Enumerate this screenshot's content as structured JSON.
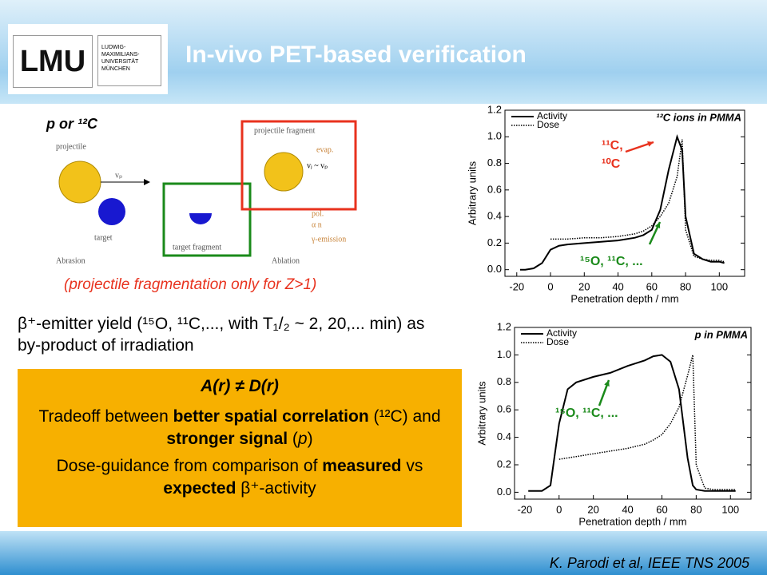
{
  "header": {
    "title": "In-vivo PET-based verification",
    "logo": "LMU",
    "logo_sub": "LUDWIG-\nMAXIMILIANS-\nUNIVERSITÄT\nMÜNCHEN"
  },
  "diagram": {
    "label": "p or ¹²C",
    "projectile": "projectile",
    "target": "target",
    "abrasion": "Abrasion",
    "target_fragment": "target fragment",
    "projectile_fragment": "projectile fragment",
    "evap": "evap.",
    "ablation": "Ablation",
    "gamma": "γ-emission",
    "pol": "pol.",
    "alpha": "α   n",
    "vp1": "vₚ",
    "vp2": "vⱼ ~ vₚ"
  },
  "note": "(projectile fragmentation only for Z>1)",
  "yield_text": "β⁺-emitter yield (¹⁵O, ¹¹C,..., with T₁/₂ ~ 2, 20,... min) as by-product of irradiation",
  "box": {
    "heading": "A(r) ≠ D(r)",
    "p1": [
      "Tradeoff between ",
      "better spatial correlation",
      " (¹²C) and ",
      "stronger signal",
      " (",
      "p",
      ")"
    ],
    "p2": [
      "Dose-guidance from comparison of ",
      "measured",
      " vs ",
      "expected",
      " β⁺-activity"
    ]
  },
  "citation": "K. Parodi et al, IEEE TNS 2005",
  "chart_data": [
    {
      "type": "line",
      "title": "¹²C ions in PMMA",
      "x_label": "Penetration depth / mm",
      "y_label": "Arbitrary units",
      "x": [
        -18,
        -15,
        -10,
        -5,
        0,
        5,
        10,
        20,
        30,
        40,
        50,
        55,
        60,
        65,
        70,
        75,
        78,
        80,
        85,
        90,
        95,
        100,
        103
      ],
      "series": [
        {
          "name": "Activity",
          "color": "#000000",
          "style": "solid",
          "values": [
            0,
            0,
            0.01,
            0.05,
            0.15,
            0.18,
            0.19,
            0.2,
            0.21,
            0.22,
            0.24,
            0.26,
            0.3,
            0.45,
            0.75,
            1.0,
            0.9,
            0.4,
            0.12,
            0.08,
            0.06,
            0.06,
            0.05
          ]
        },
        {
          "name": "Dose",
          "color": "#000000",
          "style": "dotted",
          "values": [
            null,
            null,
            null,
            null,
            0.23,
            0.23,
            0.23,
            0.24,
            0.24,
            0.25,
            0.27,
            0.29,
            0.33,
            0.4,
            0.5,
            0.7,
            0.98,
            0.3,
            0.1,
            0.08,
            0.07,
            0.07,
            0.06
          ]
        }
      ],
      "xlim": [
        -27,
        115
      ],
      "ylim": [
        -0.05,
        1.2
      ],
      "xticks": [
        -20,
        0,
        20,
        40,
        60,
        80,
        100
      ],
      "yticks": [
        {
          "value": 0,
          "label": "0.0"
        },
        0.2,
        0.4,
        0.6,
        0.8,
        {
          "value": 1,
          "label": "1.0"
        },
        1.2
      ],
      "annotations": [
        {
          "text": "¹¹C,",
          "color": "#e8321e"
        },
        {
          "text": "¹⁰C",
          "color": "#e8321e"
        },
        {
          "text": "¹⁵O, ¹¹C, ...",
          "color": "#1a8a1a"
        }
      ]
    },
    {
      "type": "line",
      "title": "p in PMMA",
      "x_label": "Penetration depth / mm",
      "y_label": "Arbitrary units",
      "x": [
        -18,
        -15,
        -10,
        -5,
        0,
        5,
        10,
        20,
        30,
        40,
        50,
        55,
        60,
        65,
        70,
        75,
        78,
        80,
        85,
        90,
        95,
        100,
        103
      ],
      "series": [
        {
          "name": "Activity",
          "color": "#000000",
          "style": "solid",
          "values": [
            0.01,
            0.01,
            0.01,
            0.05,
            0.5,
            0.75,
            0.8,
            0.84,
            0.87,
            0.92,
            0.96,
            0.99,
            1.0,
            0.95,
            0.75,
            0.25,
            0.05,
            0.02,
            0.01,
            0.01,
            0.01,
            0.01,
            0.01
          ]
        },
        {
          "name": "Dose",
          "color": "#000000",
          "style": "dotted",
          "values": [
            null,
            null,
            null,
            null,
            0.24,
            0.25,
            0.26,
            0.28,
            0.3,
            0.32,
            0.35,
            0.38,
            0.42,
            0.5,
            0.62,
            0.85,
            1.0,
            0.2,
            0.03,
            0.02,
            0.02,
            0.02,
            0.02
          ]
        }
      ],
      "xlim": [
        -26,
        112
      ],
      "ylim": [
        -0.05,
        1.2
      ],
      "xticks": [
        -20,
        0,
        20,
        40,
        60,
        80,
        100
      ],
      "yticks": [
        {
          "value": 0,
          "label": "0.0"
        },
        0.2,
        0.4,
        0.6,
        0.8,
        {
          "value": 1,
          "label": "1.0"
        },
        1.2
      ],
      "annotations": [
        {
          "text": "¹⁵O, ¹¹C, ...",
          "color": "#1a8a1a"
        }
      ]
    }
  ]
}
